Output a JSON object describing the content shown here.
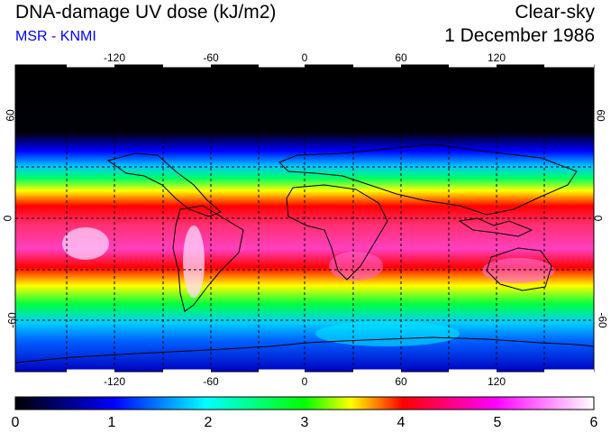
{
  "header": {
    "title": "DNA-damage UV dose (kJ/m2)",
    "subtitle": "MSR - KNMI",
    "sky": "Clear-sky",
    "date": "1 December 1986"
  },
  "map": {
    "lon_ticks": [
      "-120",
      "-60",
      "0",
      "60",
      "120"
    ],
    "lat_ticks": [
      "60",
      "0",
      "-60"
    ],
    "lon_range": [
      -180,
      180
    ],
    "lat_range": [
      -90,
      90
    ]
  },
  "colorbar": {
    "labels": [
      "0",
      "1",
      "2",
      "3",
      "4",
      "5",
      "6"
    ],
    "range": [
      0,
      6
    ],
    "colors": [
      "#000000",
      "#0000ff",
      "#00ffff",
      "#00ff00",
      "#ffff00",
      "#ff0000",
      "#ff00ff",
      "#ffffff"
    ]
  }
}
